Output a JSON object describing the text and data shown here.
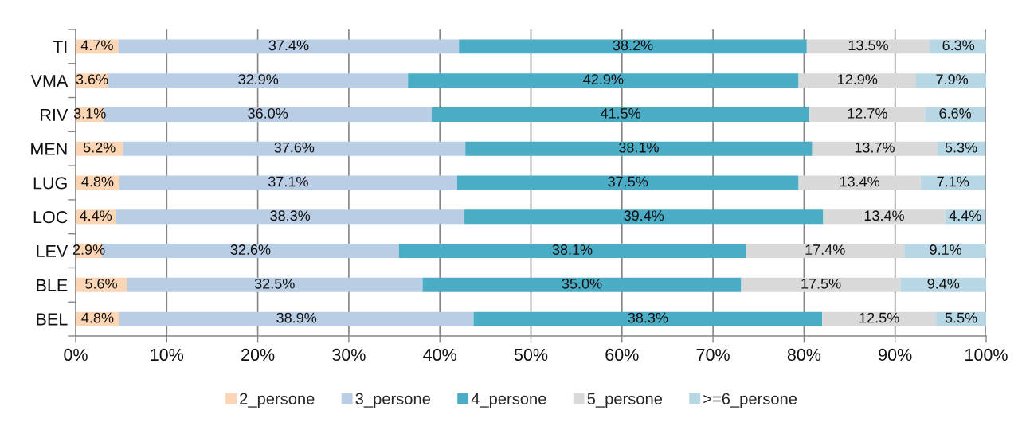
{
  "chart_data": {
    "type": "bar",
    "orientation": "horizontal",
    "stacked": true,
    "categories": [
      "TI",
      "VMA",
      "RIV",
      "MEN",
      "LUG",
      "LOC",
      "LEV",
      "BLE",
      "BEL"
    ],
    "series": [
      {
        "name": "2_persone",
        "color": "#fcd5b4",
        "values": [
          4.7,
          3.6,
          3.1,
          5.2,
          4.8,
          4.4,
          2.9,
          5.6,
          4.8
        ],
        "value_labels": [
          "4.7%",
          "3.6%",
          "3.1%",
          "5.2%",
          "4.8%",
          "4.4%",
          "2.9%",
          "5.6%",
          "4.8%"
        ]
      },
      {
        "name": "3_persone",
        "color": "#b9cde5",
        "values": [
          37.4,
          32.9,
          36.0,
          37.6,
          37.1,
          38.3,
          32.6,
          32.5,
          38.9
        ],
        "value_labels": [
          "37.4%",
          "32.9%",
          "36.0%",
          "37.6%",
          "37.1%",
          "38.3%",
          "32.6%",
          "32.5%",
          "38.9%"
        ]
      },
      {
        "name": "4_persone",
        "color": "#4bacc6",
        "values": [
          38.2,
          42.9,
          41.5,
          38.1,
          37.5,
          39.4,
          38.1,
          35.0,
          38.3
        ],
        "value_labels": [
          "38.2%",
          "42.9%",
          "41.5%",
          "38.1%",
          "37.5%",
          "39.4%",
          "38.1%",
          "35.0%",
          "38.3%"
        ]
      },
      {
        "name": "5_persone",
        "color": "#d9d9d9",
        "values": [
          13.5,
          12.9,
          12.7,
          13.7,
          13.4,
          13.4,
          17.4,
          17.5,
          12.5
        ],
        "value_labels": [
          "13.5%",
          "12.9%",
          "12.7%",
          "13.7%",
          "13.4%",
          "13.4%",
          "17.4%",
          "17.5%",
          "12.5%"
        ]
      },
      {
        "name": ">=6_persone",
        "color": "#b7d7e4",
        "values": [
          6.3,
          7.9,
          6.6,
          5.3,
          7.1,
          4.4,
          9.1,
          9.4,
          5.5
        ],
        "value_labels": [
          "6.3%",
          "7.9%",
          "6.6%",
          "5.3%",
          "7.1%",
          "4.4%",
          "9.1%",
          "9.4%",
          "5.5%"
        ]
      }
    ],
    "xlim": [
      0,
      100
    ],
    "xticks": [
      {
        "value": 0,
        "label": "0%"
      },
      {
        "value": 10,
        "label": "10%"
      },
      {
        "value": 20,
        "label": "20%"
      },
      {
        "value": 30,
        "label": "30%"
      },
      {
        "value": 40,
        "label": "40%"
      },
      {
        "value": 50,
        "label": "50%"
      },
      {
        "value": 60,
        "label": "60%"
      },
      {
        "value": 70,
        "label": "70%"
      },
      {
        "value": 80,
        "label": "80%"
      },
      {
        "value": 90,
        "label": "90%"
      },
      {
        "value": 100,
        "label": "100%"
      }
    ],
    "grid": "x",
    "legend": "bottom"
  }
}
